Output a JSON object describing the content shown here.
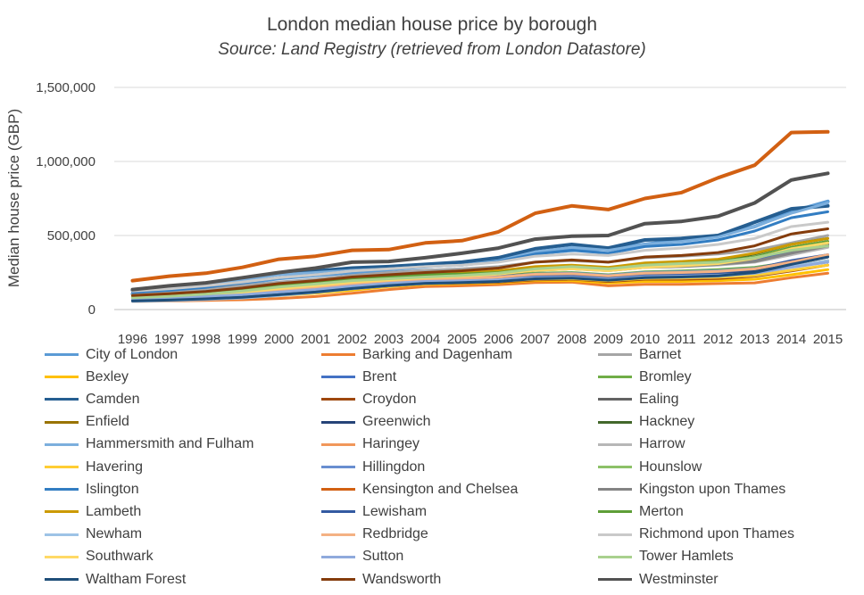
{
  "chart_data": {
    "type": "line",
    "title": "London median house price by borough",
    "subtitle": "Source: Land Registry (retrieved from London Datastore)",
    "xlabel": "",
    "ylabel": "Median house price (GBP)",
    "ylim": [
      0,
      1500000
    ],
    "yticks": [
      0,
      500000,
      1000000,
      1500000
    ],
    "ytick_labels": [
      "0",
      "500,000",
      "1,000,000",
      "1,500,000"
    ],
    "grid": true,
    "legend_position": "bottom",
    "categories": [
      "1996",
      "1997",
      "1998",
      "1999",
      "2000",
      "2001",
      "2002",
      "2003",
      "2004",
      "2005",
      "2006",
      "2007",
      "2008",
      "2009",
      "2010",
      "2011",
      "2012",
      "2013",
      "2014",
      "2015"
    ],
    "series": [
      {
        "name": "City of London",
        "color": "#5b9bd5",
        "values": [
          105000,
          115000,
          135000,
          175000,
          210000,
          230000,
          250000,
          270000,
          290000,
          310000,
          340000,
          380000,
          400000,
          410000,
          440000,
          470000,
          500000,
          560000,
          660000,
          730000
        ]
      },
      {
        "name": "Barking and Dagenham",
        "color": "#ed7d31",
        "values": [
          55000,
          58000,
          62000,
          66000,
          75000,
          88000,
          110000,
          135000,
          155000,
          160000,
          168000,
          182000,
          185000,
          160000,
          170000,
          170000,
          175000,
          180000,
          215000,
          245000
        ]
      },
      {
        "name": "Barnet",
        "color": "#a5a5a5",
        "values": [
          110000,
          125000,
          140000,
          160000,
          185000,
          205000,
          230000,
          250000,
          265000,
          275000,
          290000,
          320000,
          330000,
          320000,
          350000,
          360000,
          375000,
          400000,
          450000,
          500000
        ]
      },
      {
        "name": "Bexley",
        "color": "#ffc000",
        "values": [
          65000,
          70000,
          75000,
          80000,
          95000,
          110000,
          130000,
          155000,
          170000,
          175000,
          180000,
          195000,
          195000,
          180000,
          190000,
          190000,
          195000,
          205000,
          235000,
          270000
        ]
      },
      {
        "name": "Brent",
        "color": "#4472c4",
        "values": [
          80000,
          88000,
          100000,
          115000,
          140000,
          160000,
          185000,
          205000,
          220000,
          230000,
          245000,
          270000,
          280000,
          265000,
          290000,
          295000,
          305000,
          330000,
          390000,
          430000
        ]
      },
      {
        "name": "Bromley",
        "color": "#70ad47",
        "values": [
          85000,
          92000,
          105000,
          120000,
          140000,
          155000,
          175000,
          195000,
          210000,
          215000,
          225000,
          245000,
          250000,
          235000,
          255000,
          260000,
          270000,
          285000,
          320000,
          365000
        ]
      },
      {
        "name": "Camden",
        "color": "#255e91",
        "values": [
          130000,
          150000,
          165000,
          200000,
          240000,
          260000,
          280000,
          290000,
          305000,
          320000,
          350000,
          410000,
          440000,
          415000,
          470000,
          480000,
          500000,
          590000,
          680000,
          700000
        ]
      },
      {
        "name": "Croydon",
        "color": "#9e480e",
        "values": [
          68000,
          75000,
          82000,
          90000,
          105000,
          120000,
          140000,
          160000,
          175000,
          180000,
          185000,
          200000,
          205000,
          190000,
          205000,
          205000,
          210000,
          225000,
          260000,
          300000
        ]
      },
      {
        "name": "Ealing",
        "color": "#636363",
        "values": [
          90000,
          100000,
          112000,
          130000,
          155000,
          175000,
          200000,
          220000,
          235000,
          245000,
          260000,
          285000,
          295000,
          280000,
          300000,
          310000,
          325000,
          350000,
          400000,
          440000
        ]
      },
      {
        "name": "Enfield",
        "color": "#997300",
        "values": [
          70000,
          77000,
          85000,
          95000,
          112000,
          128000,
          150000,
          170000,
          185000,
          190000,
          198000,
          215000,
          220000,
          205000,
          220000,
          225000,
          235000,
          250000,
          290000,
          330000
        ]
      },
      {
        "name": "Greenwich",
        "color": "#264478",
        "values": [
          65000,
          72000,
          80000,
          92000,
          110000,
          128000,
          150000,
          170000,
          185000,
          192000,
          200000,
          220000,
          225000,
          210000,
          230000,
          235000,
          245000,
          265000,
          310000,
          360000
        ]
      },
      {
        "name": "Hackney",
        "color": "#43682b",
        "values": [
          65000,
          75000,
          88000,
          105000,
          130000,
          150000,
          175000,
          190000,
          205000,
          215000,
          235000,
          265000,
          275000,
          265000,
          295000,
          310000,
          330000,
          375000,
          440000,
          480000
        ]
      },
      {
        "name": "Hammersmith and Fulham",
        "color": "#7cafdd",
        "values": [
          130000,
          150000,
          170000,
          200000,
          235000,
          250000,
          265000,
          275000,
          290000,
          300000,
          330000,
          390000,
          420000,
          400000,
          440000,
          460000,
          490000,
          560000,
          650000,
          720000
        ]
      },
      {
        "name": "Haringey",
        "color": "#f1975a",
        "values": [
          80000,
          90000,
          102000,
          120000,
          145000,
          165000,
          190000,
          205000,
          220000,
          230000,
          245000,
          275000,
          285000,
          270000,
          295000,
          305000,
          320000,
          355000,
          410000,
          460000
        ]
      },
      {
        "name": "Harrow",
        "color": "#b7b7b7",
        "values": [
          95000,
          105000,
          118000,
          135000,
          155000,
          175000,
          200000,
          220000,
          235000,
          240000,
          250000,
          270000,
          275000,
          265000,
          285000,
          290000,
          300000,
          320000,
          370000,
          420000
        ]
      },
      {
        "name": "Havering",
        "color": "#ffcd33",
        "values": [
          70000,
          76000,
          82000,
          90000,
          105000,
          120000,
          142000,
          165000,
          180000,
          185000,
          190000,
          205000,
          208000,
          195000,
          210000,
          212000,
          218000,
          230000,
          265000,
          300000
        ]
      },
      {
        "name": "Hillingdon",
        "color": "#698ed0",
        "values": [
          85000,
          93000,
          103000,
          117000,
          136000,
          155000,
          178000,
          198000,
          210000,
          215000,
          222000,
          240000,
          245000,
          232000,
          250000,
          255000,
          262000,
          278000,
          320000,
          370000
        ]
      },
      {
        "name": "Hounslow",
        "color": "#8cc168",
        "values": [
          80000,
          88000,
          98000,
          112000,
          132000,
          150000,
          172000,
          190000,
          203000,
          208000,
          216000,
          235000,
          240000,
          228000,
          245000,
          250000,
          258000,
          275000,
          320000,
          365000
        ]
      },
      {
        "name": "Islington",
        "color": "#327dc2",
        "values": [
          115000,
          130000,
          150000,
          180000,
          215000,
          235000,
          260000,
          275000,
          290000,
          300000,
          325000,
          375000,
          400000,
          380000,
          425000,
          440000,
          470000,
          530000,
          620000,
          660000
        ]
      },
      {
        "name": "Kensington and Chelsea",
        "color": "#d26012",
        "values": [
          195000,
          225000,
          245000,
          285000,
          340000,
          360000,
          400000,
          405000,
          450000,
          465000,
          525000,
          650000,
          700000,
          675000,
          750000,
          790000,
          890000,
          975000,
          1195000,
          1200000
        ]
      },
      {
        "name": "Kingston upon Thames",
        "color": "#848484",
        "values": [
          95000,
          105000,
          118000,
          135000,
          158000,
          175000,
          200000,
          218000,
          230000,
          235000,
          245000,
          268000,
          275000,
          262000,
          285000,
          290000,
          305000,
          325000,
          380000,
          430000
        ]
      },
      {
        "name": "Lambeth",
        "color": "#cc9a00",
        "values": [
          85000,
          95000,
          110000,
          130000,
          160000,
          180000,
          205000,
          220000,
          235000,
          245000,
          262000,
          290000,
          300000,
          285000,
          315000,
          325000,
          340000,
          380000,
          440000,
          480000
        ]
      },
      {
        "name": "Lewisham",
        "color": "#335aa1",
        "values": [
          62000,
          70000,
          80000,
          94000,
          115000,
          132000,
          155000,
          175000,
          190000,
          196000,
          205000,
          225000,
          230000,
          215000,
          235000,
          240000,
          250000,
          275000,
          330000,
          370000
        ]
      },
      {
        "name": "Merton",
        "color": "#5e9e37",
        "values": [
          90000,
          100000,
          115000,
          135000,
          162000,
          180000,
          205000,
          222000,
          235000,
          240000,
          250000,
          275000,
          285000,
          272000,
          300000,
          310000,
          325000,
          355000,
          420000,
          460000
        ]
      },
      {
        "name": "Newham",
        "color": "#9dc3e6",
        "values": [
          55000,
          60000,
          68000,
          78000,
          95000,
          115000,
          140000,
          160000,
          175000,
          182000,
          190000,
          210000,
          215000,
          200000,
          215000,
          218000,
          225000,
          245000,
          290000,
          330000
        ]
      },
      {
        "name": "Redbridge",
        "color": "#f4b183",
        "values": [
          75000,
          83000,
          93000,
          107000,
          128000,
          146000,
          170000,
          190000,
          205000,
          210000,
          218000,
          238000,
          242000,
          228000,
          245000,
          250000,
          258000,
          275000,
          320000,
          370000
        ]
      },
      {
        "name": "Richmond upon Thames",
        "color": "#c9c9c9",
        "values": [
          125000,
          140000,
          160000,
          185000,
          215000,
          235000,
          260000,
          275000,
          290000,
          300000,
          320000,
          360000,
          375000,
          365000,
          400000,
          415000,
          440000,
          480000,
          560000,
          590000
        ]
      },
      {
        "name": "Southwark",
        "color": "#ffd966",
        "values": [
          75000,
          85000,
          98000,
          117000,
          142000,
          162000,
          185000,
          200000,
          215000,
          225000,
          240000,
          265000,
          275000,
          262000,
          285000,
          295000,
          310000,
          345000,
          410000,
          450000
        ]
      },
      {
        "name": "Sutton",
        "color": "#8faadc",
        "values": [
          72000,
          79000,
          88000,
          100000,
          118000,
          135000,
          158000,
          177000,
          190000,
          194000,
          200000,
          215000,
          218000,
          205000,
          222000,
          226000,
          232000,
          245000,
          285000,
          320000
        ]
      },
      {
        "name": "Tower Hamlets",
        "color": "#a9d18e",
        "values": [
          80000,
          90000,
          105000,
          125000,
          152000,
          172000,
          195000,
          208000,
          220000,
          230000,
          245000,
          275000,
          290000,
          275000,
          300000,
          310000,
          320000,
          350000,
          400000,
          430000
        ]
      },
      {
        "name": "Waltham Forest",
        "color": "#1f4e79",
        "values": [
          58000,
          64000,
          72000,
          83000,
          100000,
          118000,
          142000,
          162000,
          177000,
          182000,
          190000,
          208000,
          212000,
          198000,
          215000,
          220000,
          228000,
          250000,
          305000,
          355000
        ]
      },
      {
        "name": "Wandsworth",
        "color": "#843c0c",
        "values": [
          95000,
          107000,
          122000,
          145000,
          175000,
          195000,
          220000,
          235000,
          250000,
          262000,
          280000,
          320000,
          335000,
          320000,
          355000,
          365000,
          385000,
          430000,
          510000,
          545000
        ]
      },
      {
        "name": "Westminster",
        "color": "#525252",
        "values": [
          135000,
          160000,
          180000,
          215000,
          250000,
          280000,
          320000,
          325000,
          350000,
          380000,
          415000,
          475000,
          495000,
          500000,
          580000,
          595000,
          630000,
          720000,
          875000,
          920000
        ]
      }
    ]
  }
}
